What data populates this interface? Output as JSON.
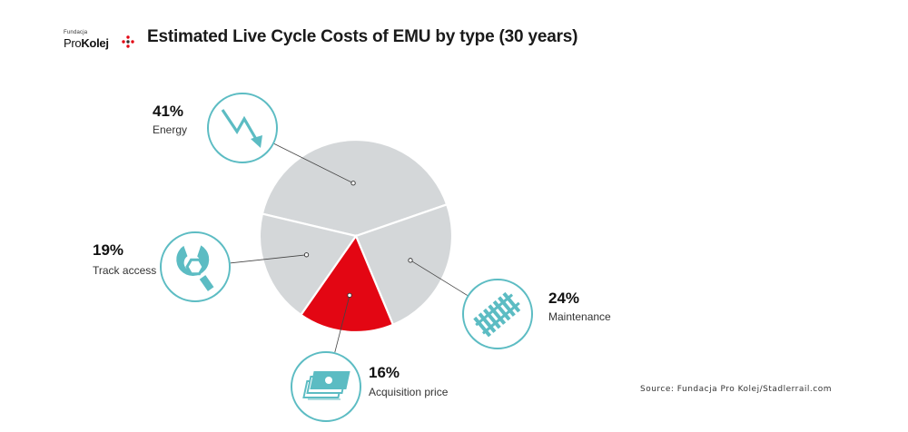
{
  "header": {
    "logo_small": "Fundacja",
    "logo_pro": "Pro",
    "logo_kolej": "Kolej",
    "title": "Estimated Live Cycle Costs of EMU by type (30 years)"
  },
  "source": "Source: Fundacja Pro Kolej/Stadlerrail.com",
  "colors": {
    "slice_gray": "#d4d7d9",
    "highlight_red": "#e30613",
    "icon_teal": "#5cbcc3",
    "separator": "#ffffff"
  },
  "chart_data": {
    "type": "pie",
    "title": "Estimated Live Cycle Costs of EMU by type (30 years)",
    "unit": "%",
    "slices": [
      {
        "label": "Energy",
        "value": 41,
        "pct_label": "41%",
        "color": "#d4d7d9",
        "icon": "lightning-arrow-icon"
      },
      {
        "label": "Maintenance",
        "value": 24,
        "pct_label": "24%",
        "color": "#d4d7d9",
        "icon": "railway-track-icon"
      },
      {
        "label": "Acquisition price",
        "value": 16,
        "pct_label": "16%",
        "color": "#e30613",
        "icon": "banknotes-icon"
      },
      {
        "label": "Track access",
        "value": 19,
        "pct_label": "19%",
        "color": "#d4d7d9",
        "icon": "wrench-nut-icon"
      }
    ]
  }
}
